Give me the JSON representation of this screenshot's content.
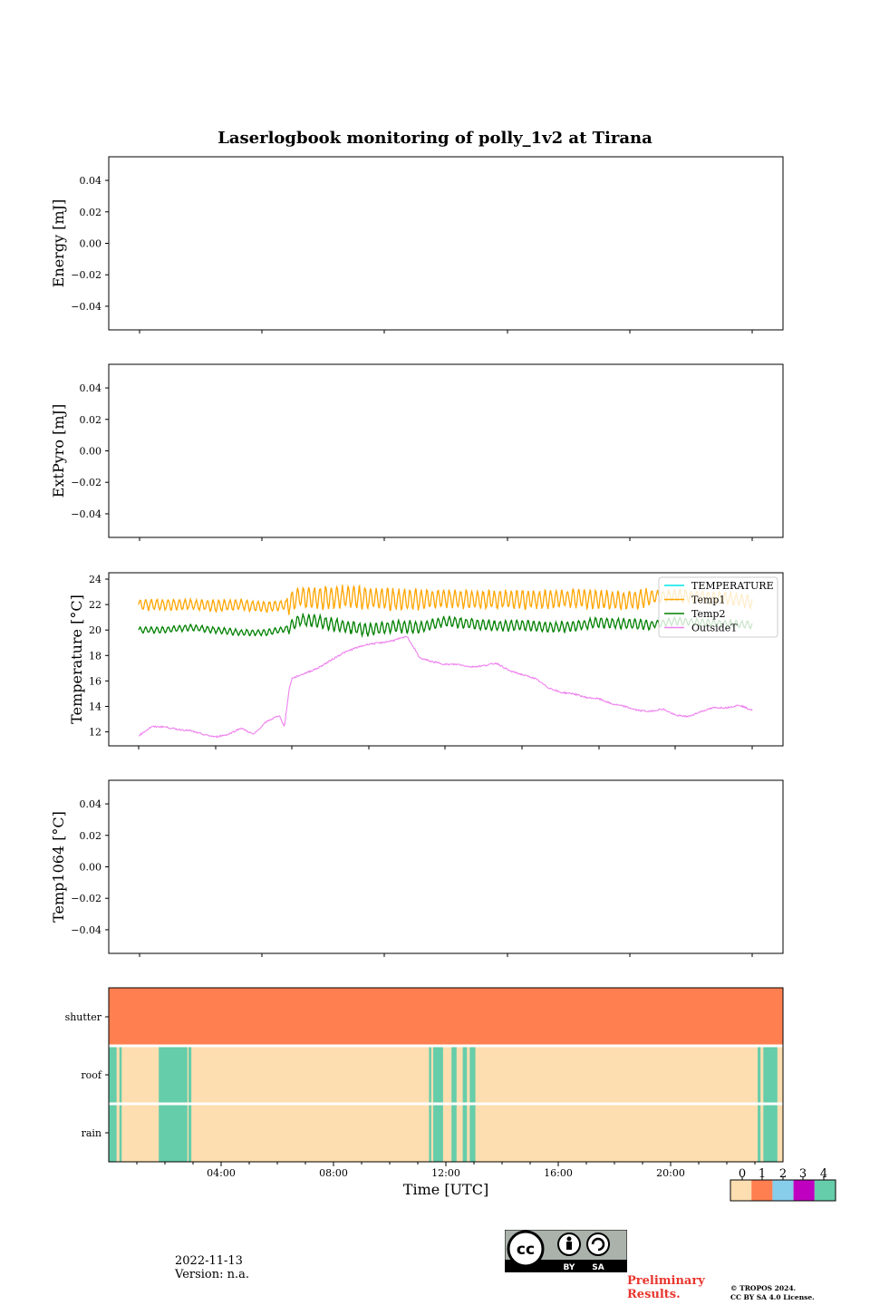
{
  "chart_data": [
    {
      "type": "line",
      "title": "Laserlogbook monitoring of polly_1v2 at Tirana",
      "ylabel": "Energy [mJ]",
      "ylim": [
        -0.055,
        0.055
      ],
      "yticks": [
        "0.04",
        "0.02",
        "0.00",
        "−0.02",
        "−0.04"
      ],
      "series": []
    },
    {
      "type": "line",
      "ylabel": "ExtPyro [mJ]",
      "ylim": [
        -0.055,
        0.055
      ],
      "yticks": [
        "0.04",
        "0.02",
        "0.00",
        "−0.02",
        "−0.04"
      ],
      "series": []
    },
    {
      "type": "line",
      "ylabel": "Temperature [°C]",
      "ylim": [
        10.9,
        24.5
      ],
      "yticks": [
        "24",
        "22",
        "20",
        "18",
        "16",
        "14",
        "12"
      ],
      "x_range_hours": [
        0,
        24
      ],
      "legend_position": "top-right",
      "series": [
        {
          "name": "TEMPERATURE",
          "color": "#00e5e5",
          "x": [],
          "values": []
        },
        {
          "name": "Temp1",
          "color": "#ffa500",
          "x": [
            0.0,
            1.0,
            2.0,
            3.0,
            4.0,
            5.0,
            5.8,
            6.3,
            7.0,
            8.0,
            9.0,
            10.0,
            11.0,
            12.0,
            13.0,
            14.0,
            15.0,
            16.0,
            17.0,
            18.0,
            19.0,
            20.0,
            21.0,
            22.0,
            23.0,
            24.0
          ],
          "values": [
            22.0,
            22.0,
            22.0,
            21.9,
            22.0,
            21.8,
            22.0,
            22.6,
            22.5,
            22.6,
            22.5,
            22.4,
            22.4,
            22.5,
            22.4,
            22.4,
            22.4,
            22.4,
            22.5,
            22.4,
            22.3,
            22.6,
            22.7,
            22.6,
            22.5,
            22.2
          ]
        },
        {
          "name": "Temp2",
          "color": "#008000",
          "x": [
            0.0,
            1.0,
            2.0,
            3.0,
            4.0,
            5.0,
            5.8,
            6.3,
            7.0,
            8.0,
            9.0,
            10.0,
            11.0,
            12.0,
            13.0,
            14.0,
            15.0,
            16.0,
            17.0,
            18.0,
            19.0,
            20.0,
            21.0,
            22.0,
            23.0,
            24.0
          ],
          "values": [
            20.0,
            20.0,
            20.2,
            20.0,
            19.8,
            19.8,
            20.1,
            20.8,
            20.7,
            20.3,
            20.0,
            20.3,
            20.2,
            20.7,
            20.5,
            20.3,
            20.4,
            20.2,
            20.3,
            20.6,
            20.5,
            20.4,
            20.7,
            20.6,
            20.5,
            20.4
          ]
        },
        {
          "name": "OutsideT",
          "color": "#ee82ee",
          "x": [
            0.0,
            0.5,
            1.0,
            1.5,
            2.0,
            2.5,
            3.0,
            3.5,
            4.0,
            4.5,
            5.0,
            5.5,
            5.7,
            5.9,
            6.0,
            6.5,
            7.0,
            7.5,
            8.0,
            8.5,
            9.0,
            9.5,
            10.0,
            10.5,
            11.0,
            11.5,
            12.0,
            12.5,
            13.0,
            13.5,
            14.0,
            14.5,
            15.0,
            15.5,
            16.0,
            16.5,
            17.0,
            17.5,
            18.0,
            18.5,
            19.0,
            19.5,
            20.0,
            20.5,
            21.0,
            21.5,
            22.0,
            22.5,
            23.0,
            23.5,
            24.0
          ],
          "values": [
            11.7,
            12.4,
            12.4,
            12.2,
            12.1,
            11.8,
            11.6,
            11.8,
            12.3,
            11.8,
            12.8,
            13.3,
            12.4,
            15.5,
            16.2,
            16.6,
            17.0,
            17.6,
            18.2,
            18.6,
            18.9,
            19.0,
            19.2,
            19.5,
            17.8,
            17.5,
            17.3,
            17.3,
            17.1,
            17.2,
            17.4,
            16.8,
            16.5,
            16.2,
            15.5,
            15.1,
            15.0,
            14.7,
            14.6,
            14.2,
            14.0,
            13.7,
            13.6,
            13.8,
            13.3,
            13.2,
            13.6,
            13.9,
            13.9,
            14.1,
            13.7
          ]
        }
      ]
    },
    {
      "type": "line",
      "ylabel": "Temp1064 [°C]",
      "ylim": [
        -0.055,
        0.055
      ],
      "yticks": [
        "0.04",
        "0.02",
        "0.00",
        "−0.02",
        "−0.04"
      ],
      "series": []
    },
    {
      "type": "heatmap",
      "xlabel": "Time [UTC]",
      "xticks": [
        "04:00",
        "08:00",
        "12:00",
        "16:00",
        "20:00"
      ],
      "rows": [
        "shutter",
        "roof",
        "rain"
      ],
      "colorbar": {
        "ticks": [
          "0",
          "1",
          "2",
          "3",
          "4"
        ],
        "colors": [
          "#fddeb0",
          "#ff7f50",
          "#87ceeb",
          "#c000c0",
          "#66cdaa"
        ]
      },
      "segments": {
        "shutter": [
          {
            "start": 0.0,
            "end": 24.0,
            "level": 1
          }
        ],
        "roof": [
          {
            "start": 0.0,
            "end": 0.28,
            "level": 4
          },
          {
            "start": 0.38,
            "end": 0.46,
            "level": 4
          },
          {
            "start": 1.78,
            "end": 2.8,
            "level": 4
          },
          {
            "start": 2.84,
            "end": 2.94,
            "level": 4
          },
          {
            "start": 11.4,
            "end": 11.48,
            "level": 4
          },
          {
            "start": 11.55,
            "end": 11.9,
            "level": 4
          },
          {
            "start": 12.2,
            "end": 12.38,
            "level": 4
          },
          {
            "start": 12.6,
            "end": 12.75,
            "level": 4
          },
          {
            "start": 12.85,
            "end": 13.05,
            "level": 4
          },
          {
            "start": 23.1,
            "end": 23.2,
            "level": 4
          },
          {
            "start": 23.3,
            "end": 23.8,
            "level": 4
          }
        ],
        "rain": [
          {
            "start": 0.0,
            "end": 0.28,
            "level": 4
          },
          {
            "start": 0.38,
            "end": 0.46,
            "level": 4
          },
          {
            "start": 1.78,
            "end": 2.8,
            "level": 4
          },
          {
            "start": 2.84,
            "end": 2.94,
            "level": 4
          },
          {
            "start": 11.4,
            "end": 11.48,
            "level": 4
          },
          {
            "start": 11.55,
            "end": 11.9,
            "level": 4
          },
          {
            "start": 12.2,
            "end": 12.38,
            "level": 4
          },
          {
            "start": 12.6,
            "end": 12.75,
            "level": 4
          },
          {
            "start": 12.85,
            "end": 13.05,
            "level": 4
          },
          {
            "start": 23.1,
            "end": 23.2,
            "level": 4
          },
          {
            "start": 23.3,
            "end": 23.8,
            "level": 4
          }
        ]
      }
    }
  ],
  "footer": {
    "date": "2022-11-13",
    "version": "Version: n.a.",
    "preliminary": "Preliminary Results.",
    "copyright_line1": "© TROPOS 2024.",
    "copyright_line2": "CC BY SA 4.0 License.",
    "license_badge": {
      "cc": "cc",
      "by": "BY",
      "sa": "SA"
    }
  }
}
